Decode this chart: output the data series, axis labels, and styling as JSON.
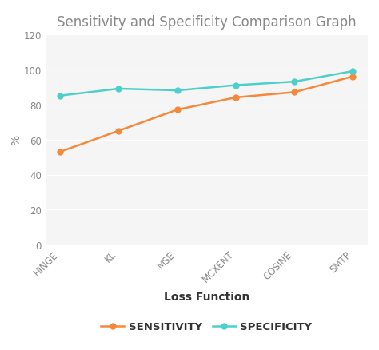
{
  "title": "Sensitivity and Specificity Comparison Graph",
  "xlabel": "Loss Function",
  "ylabel": "%",
  "categories": [
    "HINGE",
    "KL",
    "MSE",
    "MCXENT",
    "COSINE",
    "SMTP"
  ],
  "sensitivity": [
    53,
    65,
    77,
    84,
    87,
    96
  ],
  "specificity": [
    85,
    89,
    88,
    91,
    93,
    99
  ],
  "sensitivity_color": "#F5893A",
  "specificity_color": "#4DCFCB",
  "ylim": [
    0,
    120
  ],
  "yticks": [
    0,
    20,
    40,
    60,
    80,
    100,
    120
  ],
  "title_fontsize": 12,
  "axis_label_fontsize": 10,
  "tick_fontsize": 8.5,
  "legend_fontsize": 9.5,
  "marker": "o",
  "linewidth": 1.8,
  "markersize": 5
}
